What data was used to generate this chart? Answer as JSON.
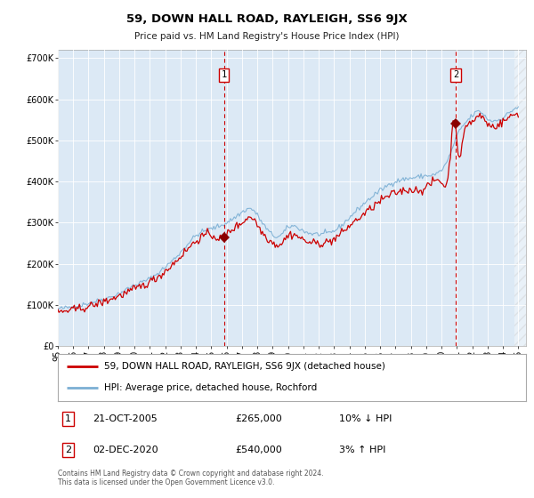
{
  "title": "59, DOWN HALL ROAD, RAYLEIGH, SS6 9JX",
  "subtitle": "Price paid vs. HM Land Registry's House Price Index (HPI)",
  "ylabel_ticks": [
    "£0",
    "£100K",
    "£200K",
    "£300K",
    "£400K",
    "£500K",
    "£600K",
    "£700K"
  ],
  "ytick_values": [
    0,
    100000,
    200000,
    300000,
    400000,
    500000,
    600000,
    700000
  ],
  "ylim": [
    0,
    720000
  ],
  "xlim_start": 1995.0,
  "xlim_end": 2025.5,
  "bg_color": "#dce9f5",
  "line1_color": "#cc0000",
  "line2_color": "#7bafd4",
  "vline_color": "#cc0000",
  "annotation1": {
    "x": 2005.83,
    "label": "1",
    "sale_date": "21-OCT-2005",
    "price": "£265,000",
    "hpi_note": "10% ↓ HPI"
  },
  "annotation2": {
    "x": 2020.92,
    "label": "2",
    "sale_date": "02-DEC-2020",
    "price": "£540,000",
    "hpi_note": "3% ↑ HPI"
  },
  "legend_line1": "59, DOWN HALL ROAD, RAYLEIGH, SS6 9JX (detached house)",
  "legend_line2": "HPI: Average price, detached house, Rochford",
  "footer": "Contains HM Land Registry data © Crown copyright and database right 2024.\nThis data is licensed under the Open Government Licence v3.0.",
  "sale1_x": 2005.83,
  "sale1_y": 265000,
  "sale2_x": 2020.92,
  "sale2_y": 540000,
  "hatch_start": 2024.75
}
